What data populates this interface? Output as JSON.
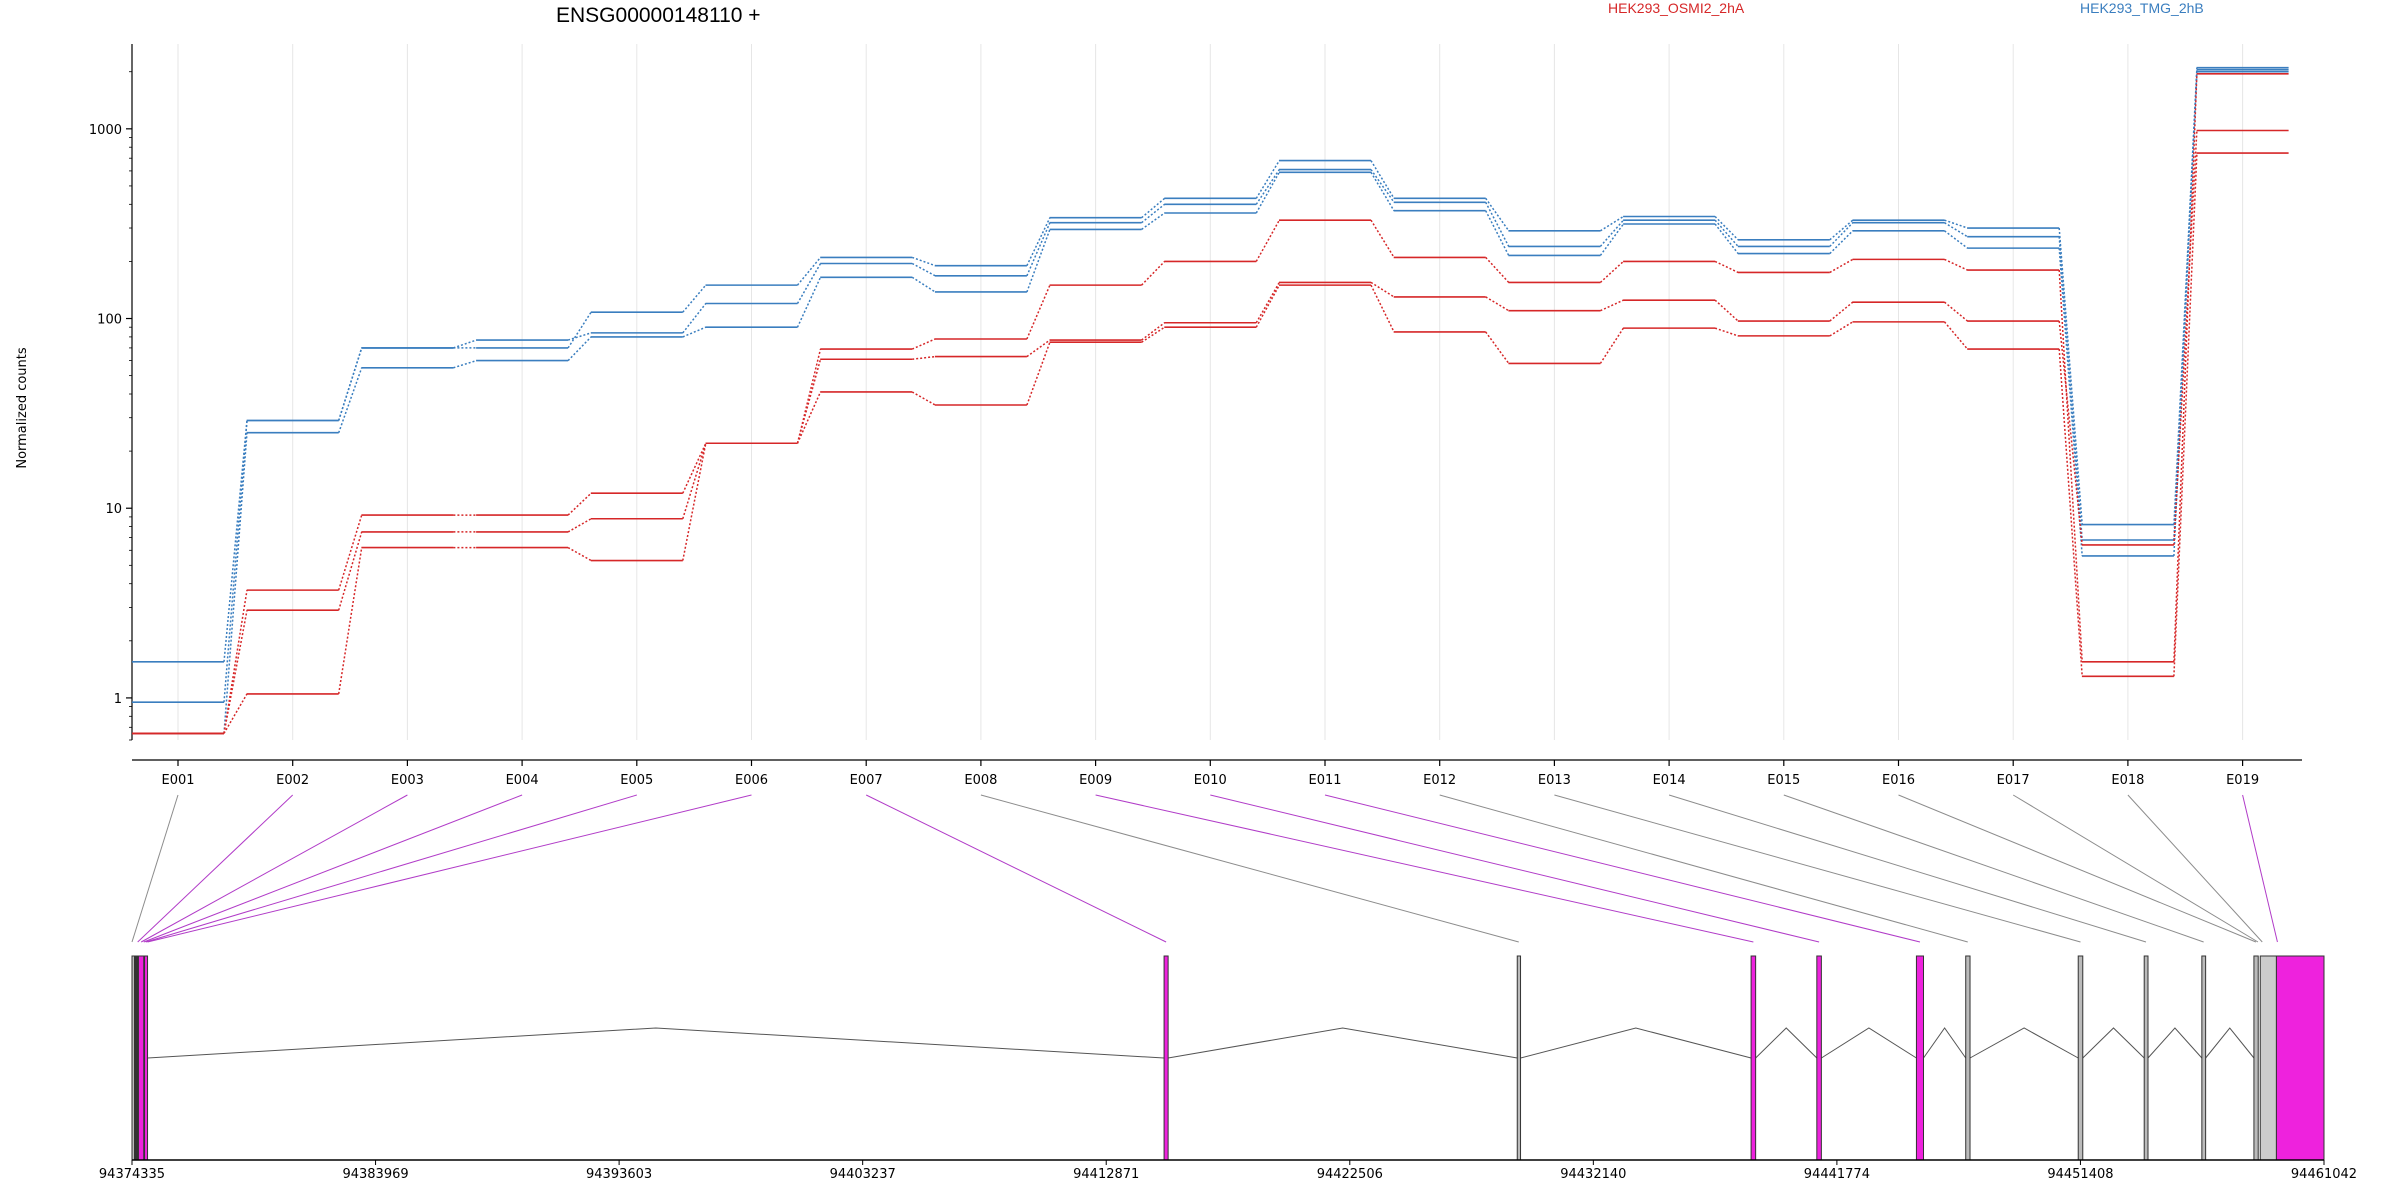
{
  "chart_data": {
    "type": "line",
    "title": "ENSG00000148110 +",
    "ylabel": "Normalized counts",
    "yscale": "log",
    "ylim": [
      0.6,
      2800
    ],
    "yticks": [
      1,
      10,
      100,
      1000
    ],
    "ytick_labels": [
      "1",
      "10",
      "100",
      "1000"
    ],
    "grid": "vertical lines at exon positions",
    "legend": [
      {
        "name": "HEK293_OSMI2_2hA",
        "color": "#d62728"
      },
      {
        "name": "HEK293_TMG_2hB",
        "color": "#3a7ebf"
      }
    ],
    "categories": [
      "E001",
      "E002",
      "E003",
      "E004",
      "E005",
      "E006",
      "E007",
      "E008",
      "E009",
      "E010",
      "E011",
      "E012",
      "E013",
      "E014",
      "E015",
      "E016",
      "E017",
      "E018",
      "E019"
    ],
    "series": [
      {
        "name": "HEK293_TMG_2hB",
        "color": "#3a7ebf",
        "values": [
          1.55,
          29,
          70,
          70,
          108,
          150,
          210,
          190,
          340,
          430,
          680,
          430,
          290,
          345,
          260,
          330,
          300,
          8.2,
          2100
        ]
      },
      {
        "name": "HEK293_TMG_2hB",
        "color": "#3a7ebf",
        "values": [
          0.95,
          29,
          70,
          77,
          84,
          120,
          195,
          168,
          320,
          400,
          610,
          410,
          240,
          330,
          240,
          320,
          270,
          6.8,
          2050
        ]
      },
      {
        "name": "HEK293_TMG_2hB",
        "color": "#3a7ebf",
        "values": [
          0.65,
          25,
          55,
          60,
          80,
          90,
          165,
          138,
          295,
          360,
          590,
          370,
          215,
          315,
          220,
          290,
          235,
          5.6,
          2000
        ]
      },
      {
        "name": "HEK293_OSMI2_2hA",
        "color": "#d62728",
        "values": [
          0.65,
          3.7,
          9.2,
          9.2,
          12,
          22,
          69,
          78,
          150,
          200,
          330,
          210,
          155,
          200,
          175,
          205,
          180,
          1.55,
          1950
        ]
      },
      {
        "name": "HEK293_OSMI2_2hA",
        "color": "#d62728",
        "values": [
          0.65,
          2.9,
          7.5,
          7.5,
          8.8,
          22,
          61,
          63,
          77,
          95,
          155,
          130,
          110,
          125,
          97,
          122,
          97,
          6.4,
          980
        ]
      },
      {
        "name": "HEK293_OSMI2_2hA",
        "color": "#d62728",
        "values": [
          0.65,
          1.05,
          6.2,
          6.2,
          5.3,
          22,
          41,
          35,
          75,
          90,
          150,
          85,
          58,
          89,
          81,
          96,
          69,
          1.3,
          745
        ]
      }
    ],
    "exon_usage": [
      "gray",
      "magenta",
      "magenta",
      "magenta",
      "magenta",
      "magenta",
      "magenta",
      "gray",
      "magenta",
      "magenta",
      "magenta",
      "gray",
      "gray",
      "gray",
      "gray",
      "gray",
      "gray",
      "gray",
      "magenta"
    ],
    "genomic_axis": {
      "range": [
        94374335,
        94461042
      ],
      "tick_labels": [
        "94374335",
        "94383969",
        "94393603",
        "94403237",
        "94412871",
        "94422506",
        "94432140",
        "94441774",
        "94451408",
        "94461042"
      ]
    },
    "gene_model": {
      "exons": [
        {
          "start": 94374335,
          "end": 94374420,
          "color": "gray"
        },
        {
          "start": 94374450,
          "end": 94374560,
          "color": "dark"
        },
        {
          "start": 94374590,
          "end": 94374800,
          "color": "magenta"
        },
        {
          "start": 94374830,
          "end": 94374950,
          "color": "magenta"
        },
        {
          "start": 94415160,
          "end": 94415320,
          "color": "magenta"
        },
        {
          "start": 94429130,
          "end": 94429260,
          "color": "gray"
        },
        {
          "start": 94438380,
          "end": 94438560,
          "color": "magenta"
        },
        {
          "start": 94440980,
          "end": 94441160,
          "color": "magenta"
        },
        {
          "start": 94444920,
          "end": 94445200,
          "color": "magenta"
        },
        {
          "start": 94446870,
          "end": 94447040,
          "color": "gray"
        },
        {
          "start": 94451320,
          "end": 94451500,
          "color": "gray"
        },
        {
          "start": 94453930,
          "end": 94454080,
          "color": "gray"
        },
        {
          "start": 94456210,
          "end": 94456360,
          "color": "gray"
        },
        {
          "start": 94458270,
          "end": 94458440,
          "color": "gray"
        },
        {
          "start": 94458520,
          "end": 94459160,
          "color": "lightgray"
        },
        {
          "start": 94459160,
          "end": 94461042,
          "color": "magenta"
        }
      ],
      "exon_bin_targets": [
        94374335,
        94374560,
        94374700,
        94374800,
        94374880,
        94374950,
        94415240,
        94429190,
        94438470,
        94441070,
        94445060,
        94446950,
        94451410,
        94454000,
        94456280,
        94458350,
        94458430,
        94458600,
        94459200
      ]
    }
  }
}
